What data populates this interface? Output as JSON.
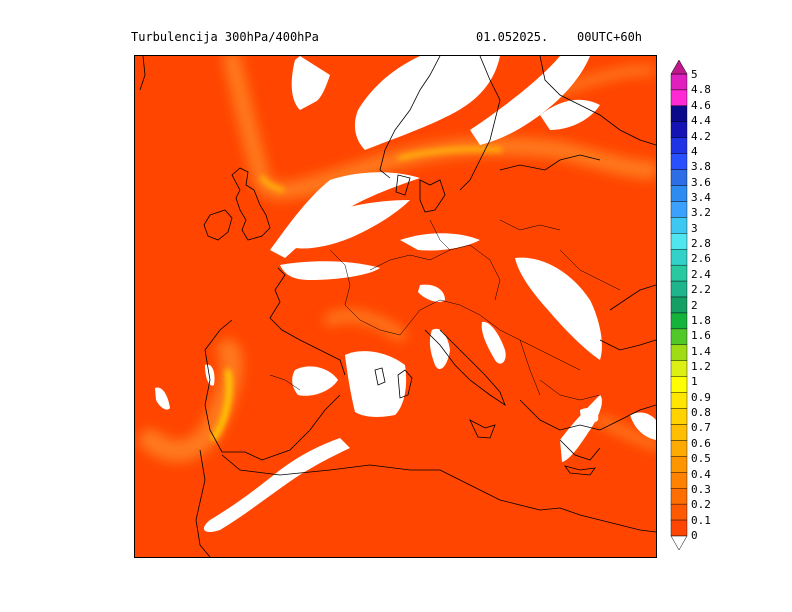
{
  "header": {
    "title": "Turbulencija 300hPa/400hPa",
    "date": "01.052025.",
    "run": "00UTC+60h"
  },
  "colors": {
    "field_base": "#ff4500",
    "field_light": "#ff7a1a",
    "field_high": "#ffd000",
    "no_data": "#ffffff",
    "coast": "#000000",
    "frame": "#000000"
  },
  "legend": {
    "levels": [
      {
        "label": "5",
        "color": "#c0178c"
      },
      {
        "label": "4.8",
        "color": "#e01fbf"
      },
      {
        "label": "4.6",
        "color": "#ff2ad4"
      },
      {
        "label": "4.4",
        "color": "#0a0a8a"
      },
      {
        "label": "4.2",
        "color": "#1414b4"
      },
      {
        "label": "4",
        "color": "#1e32e6"
      },
      {
        "label": "3.8",
        "color": "#2850ff"
      },
      {
        "label": "3.6",
        "color": "#2d6ee6"
      },
      {
        "label": "3.4",
        "color": "#2d8cf0"
      },
      {
        "label": "3.2",
        "color": "#3ca0ff"
      },
      {
        "label": "3",
        "color": "#3cc8f0"
      },
      {
        "label": "2.8",
        "color": "#50e6f0"
      },
      {
        "label": "2.6",
        "color": "#32d2c8"
      },
      {
        "label": "2.4",
        "color": "#28c8a0"
      },
      {
        "label": "2.2",
        "color": "#1eb48c"
      },
      {
        "label": "2",
        "color": "#14a064"
      },
      {
        "label": "1.8",
        "color": "#14b43c"
      },
      {
        "label": "1.6",
        "color": "#50c828"
      },
      {
        "label": "1.4",
        "color": "#a0dc14"
      },
      {
        "label": "1.2",
        "color": "#dcf014"
      },
      {
        "label": "1",
        "color": "#ffff00"
      },
      {
        "label": "0.9",
        "color": "#ffe600"
      },
      {
        "label": "0.8",
        "color": "#ffd200"
      },
      {
        "label": "0.7",
        "color": "#ffbe00"
      },
      {
        "label": "0.6",
        "color": "#ffaa00"
      },
      {
        "label": "0.5",
        "color": "#ff9600"
      },
      {
        "label": "0.4",
        "color": "#ff8200"
      },
      {
        "label": "0.3",
        "color": "#ff6e00"
      },
      {
        "label": "0.2",
        "color": "#ff5a00"
      },
      {
        "label": "0.1",
        "color": "#ff4600"
      },
      {
        "label": "0",
        "color": "#ffffff"
      }
    ]
  }
}
